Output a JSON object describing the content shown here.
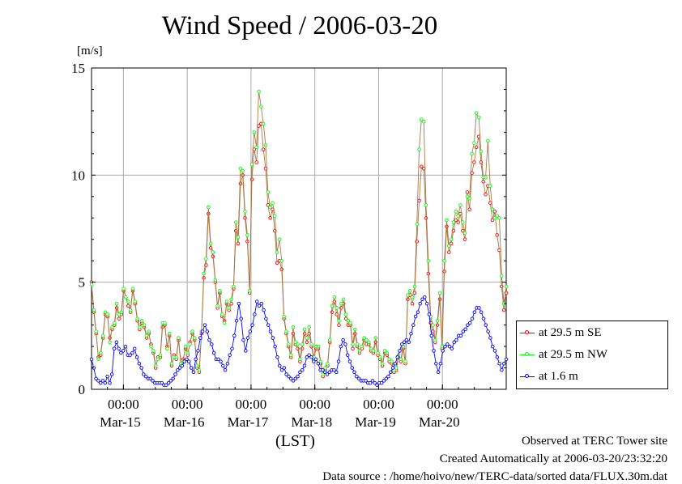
{
  "chart_data": {
    "type": "line",
    "title": "Wind Speed / 2006-03-20",
    "ylabel": "[m/s]",
    "xlabel": "(LST)",
    "ylim": [
      0,
      15
    ],
    "yticks": [
      "0",
      "5",
      "10",
      "15"
    ],
    "xlim_days": [
      "Mar-14 12:00",
      "Mar-20 24:00"
    ],
    "x_tick_time_label": "00:00",
    "x_day_labels": [
      "Mar-15",
      "Mar-16",
      "Mar-17",
      "Mar-18",
      "Mar-19",
      "Mar-20"
    ],
    "grid": true,
    "legend_position": "bottom-right outside",
    "series": [
      {
        "name": "at 29.5 m SE",
        "color": "#ff0000",
        "values": [
          5.0,
          3.6,
          2.6,
          1.5,
          1.6,
          2.4,
          3.5,
          3.4,
          2.4,
          2.8,
          3.0,
          3.8,
          3.3,
          3.5,
          4.6,
          4.3,
          3.9,
          3.6,
          4.6,
          4.0,
          3.2,
          2.8,
          3.1,
          2.9,
          2.4,
          2.6,
          2.1,
          1.7,
          1.0,
          1.5,
          1.5,
          2.9,
          3.0,
          2.0,
          2.5,
          1.1,
          1.6,
          1.4,
          2.3,
          1.1,
          1.4,
          1.9,
          1.6,
          2.2,
          2.6,
          2.3,
          1.0,
          0.8,
          2.6,
          5.2,
          5.8,
          8.2,
          6.6,
          6.2,
          5.0,
          3.8,
          4.5,
          3.4,
          3.2,
          4.0,
          3.7,
          4.0,
          4.7,
          7.4,
          6.8,
          9.6,
          10.0,
          8.0,
          6.9,
          4.5,
          9.8,
          11.2,
          10.6,
          12.3,
          12.4,
          11.2,
          10.3,
          8.6,
          8.0,
          8.4,
          7.4,
          5.9,
          6.0,
          5.6,
          3.3,
          2.6,
          2.0,
          1.5,
          2.6,
          2.1,
          1.9,
          1.3,
          1.9,
          2.6,
          2.2,
          2.6,
          2.0,
          1.4,
          1.9,
          1.9,
          1.2,
          0.6,
          0.9,
          1.1,
          2.2,
          3.6,
          4.1,
          3.5,
          3.0,
          3.8,
          4.0,
          3.3,
          3.0,
          3.0,
          1.9,
          2.6,
          2.0,
          1.7,
          1.9,
          2.3,
          2.1,
          2.1,
          1.8,
          1.7,
          2.2,
          1.6,
          1.4,
          1.1,
          1.7,
          1.6,
          1.3,
          1.2,
          0.8,
          0.9,
          1.5,
          1.3,
          1.9,
          1.2,
          4.2,
          4.4,
          4.0,
          4.5,
          6.9,
          8.8,
          10.4,
          10.3,
          8.0,
          5.4,
          3.1,
          2.7,
          2.2,
          3.0,
          4.2,
          1.9,
          5.5,
          7.6,
          6.4,
          6.8,
          7.4,
          7.9,
          7.8,
          8.2,
          7.4,
          7.0,
          9.2,
          8.4,
          10.1,
          10.6,
          11.3,
          11.8,
          10.6,
          9.7,
          9.1,
          9.5,
          8.7,
          7.9,
          8.3,
          7.2,
          6.5,
          4.8,
          3.7,
          4.5
        ]
      },
      {
        "name": "at 29.5 m NW",
        "color": "#00ff00",
        "values": [
          4.9,
          3.7,
          2.7,
          1.4,
          1.7,
          2.5,
          3.6,
          3.5,
          2.2,
          2.9,
          3.1,
          4.0,
          3.5,
          3.6,
          4.7,
          4.3,
          4.1,
          3.7,
          4.7,
          4.1,
          3.3,
          2.9,
          3.2,
          3.0,
          2.5,
          2.7,
          2.0,
          1.8,
          1.1,
          1.4,
          1.6,
          3.1,
          3.1,
          1.9,
          2.6,
          1.2,
          1.5,
          1.5,
          2.4,
          1.2,
          1.3,
          2.0,
          1.7,
          2.1,
          2.7,
          2.4,
          1.1,
          0.9,
          2.7,
          5.4,
          6.1,
          8.5,
          6.8,
          6.4,
          5.1,
          3.9,
          4.6,
          3.5,
          3.1,
          4.1,
          3.8,
          4.2,
          4.8,
          7.8,
          7.1,
          10.3,
          10.2,
          8.3,
          7.2,
          4.6,
          10.5,
          12.0,
          11.3,
          13.9,
          13.2,
          12.4,
          11.4,
          9.2,
          8.5,
          8.7,
          8.1,
          6.4,
          7.0,
          6.0,
          3.4,
          2.7,
          2.1,
          1.6,
          2.9,
          2.2,
          2.1,
          1.4,
          2.1,
          2.8,
          2.4,
          2.9,
          2.1,
          1.5,
          2.0,
          2.0,
          1.3,
          0.7,
          1.0,
          1.2,
          2.3,
          3.9,
          4.3,
          3.8,
          3.2,
          4.0,
          4.2,
          3.5,
          3.2,
          3.1,
          2.1,
          2.8,
          2.1,
          1.8,
          2.0,
          2.4,
          2.3,
          2.2,
          1.9,
          1.8,
          2.4,
          1.7,
          1.5,
          1.2,
          1.8,
          1.7,
          1.4,
          1.3,
          0.9,
          1.0,
          1.6,
          1.4,
          2.0,
          1.3,
          4.4,
          4.6,
          4.3,
          4.8,
          7.7,
          11.2,
          12.6,
          12.5,
          8.6,
          6.0,
          3.4,
          3.0,
          2.3,
          3.2,
          4.5,
          2.0,
          6.0,
          7.9,
          6.7,
          7.0,
          7.8,
          8.3,
          8.1,
          8.6,
          7.8,
          7.3,
          9.0,
          8.9,
          11.0,
          11.5,
          12.9,
          12.7,
          11.1,
          9.9,
          9.9,
          11.6,
          9.5,
          8.4,
          8.0,
          8.1,
          8.0,
          5.3,
          4.0,
          4.8
        ]
      },
      {
        "name": "at 1.6 m",
        "color": "#0000ff",
        "values": [
          1.4,
          1.0,
          0.5,
          0.4,
          0.3,
          0.4,
          0.3,
          0.6,
          0.3,
          0.7,
          1.9,
          2.2,
          1.9,
          1.7,
          1.8,
          2.0,
          1.6,
          1.6,
          1.7,
          1.9,
          1.5,
          1.2,
          1.0,
          0.7,
          0.6,
          0.5,
          0.5,
          0.4,
          0.3,
          0.3,
          0.3,
          0.3,
          0.2,
          0.2,
          0.3,
          0.4,
          0.5,
          0.7,
          0.9,
          1.0,
          1.1,
          1.3,
          1.4,
          1.3,
          1.0,
          0.8,
          1.4,
          1.8,
          2.4,
          2.7,
          3.0,
          2.7,
          2.3,
          2.1,
          1.7,
          1.4,
          1.4,
          1.3,
          1.1,
          0.9,
          1.2,
          1.6,
          1.9,
          2.5,
          3.2,
          4.0,
          3.3,
          2.3,
          1.8,
          2.4,
          2.7,
          3.0,
          3.5,
          4.1,
          3.9,
          4.0,
          3.7,
          3.3,
          3.0,
          2.7,
          2.4,
          2.0,
          1.5,
          1.1,
          0.9,
          1.0,
          0.7,
          0.6,
          0.5,
          0.4,
          0.5,
          0.6,
          0.8,
          0.9,
          1.1,
          1.5,
          1.6,
          1.5,
          1.3,
          1.4,
          1.2,
          0.9,
          0.9,
          0.8,
          0.7,
          0.8,
          0.9,
          0.9,
          0.8,
          1.3,
          2.0,
          2.3,
          2.1,
          1.6,
          1.3,
          1.0,
          0.8,
          0.6,
          0.5,
          0.4,
          0.4,
          0.4,
          0.3,
          0.3,
          0.4,
          0.3,
          0.2,
          0.3,
          0.3,
          0.4,
          0.5,
          0.6,
          0.8,
          1.0,
          1.2,
          1.5,
          1.8,
          2.1,
          2.2,
          2.3,
          2.2,
          2.6,
          3.0,
          3.4,
          3.6,
          4.0,
          4.2,
          4.3,
          4.0,
          3.5,
          2.5,
          1.8,
          1.2,
          0.8,
          1.2,
          1.8,
          2.0,
          2.1,
          2.0,
          1.9,
          2.2,
          2.3,
          2.5,
          2.5,
          2.7,
          2.8,
          3.0,
          3.1,
          3.3,
          3.6,
          3.8,
          3.8,
          3.6,
          3.3,
          3.0,
          2.7,
          2.4,
          2.0,
          1.8,
          1.5,
          1.2,
          0.9,
          1.2,
          1.4
        ]
      }
    ]
  },
  "footer": {
    "line1": "Observed at TERC Tower site",
    "line2": "Created Automatically at 2006-03-20/23:32:20",
    "line3": "Data source : /home/hoivo/new/TERC-data/sorted  data/FLUX.30m.dat"
  }
}
